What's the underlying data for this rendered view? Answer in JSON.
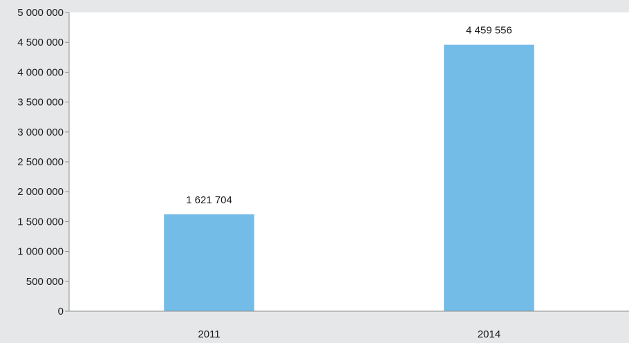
{
  "chart_data": {
    "type": "bar",
    "categories": [
      "2011",
      "2014"
    ],
    "values": [
      1621704,
      4459556
    ],
    "value_labels": [
      "1 621 704",
      "4 459 556"
    ],
    "y_ticks": [
      {
        "value": 0,
        "label": "0"
      },
      {
        "value": 500000,
        "label": "500 000"
      },
      {
        "value": 1000000,
        "label": "1 000 000"
      },
      {
        "value": 1500000,
        "label": "1 500 000"
      },
      {
        "value": 2000000,
        "label": "2 000 000"
      },
      {
        "value": 2500000,
        "label": "2 500 000"
      },
      {
        "value": 3000000,
        "label": "3 000 000"
      },
      {
        "value": 3500000,
        "label": "3 500 000"
      },
      {
        "value": 4000000,
        "label": "4 000 000"
      },
      {
        "value": 4500000,
        "label": "4 500 000"
      },
      {
        "value": 5000000,
        "label": "5 000 000"
      }
    ],
    "ylim": [
      0,
      5000000
    ],
    "title": "",
    "xlabel": "",
    "ylabel": "",
    "grid": false,
    "bar_color": "#74bce8",
    "plot_background": "#ffffff",
    "page_background": "#e6e7e8"
  }
}
